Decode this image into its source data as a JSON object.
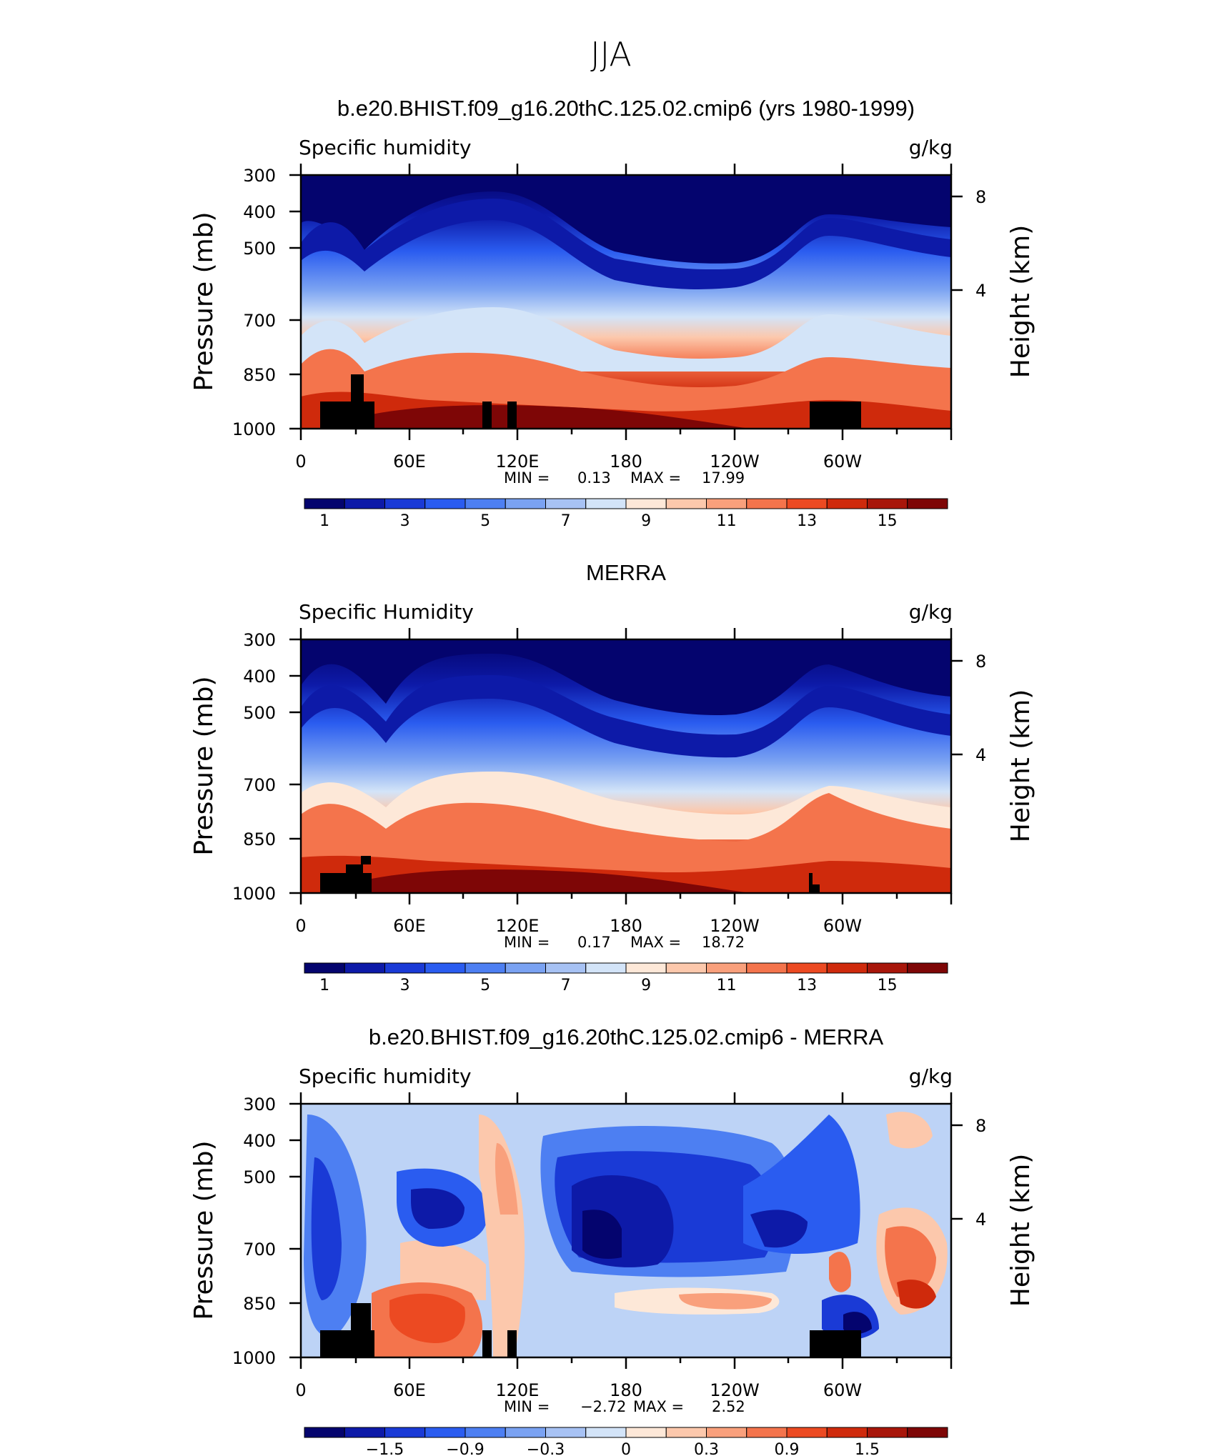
{
  "figure": {
    "title": "JJA",
    "y_left_label": "Pressure (mb)",
    "y_right_label": "Height (km)",
    "x_ticks": [
      "0",
      "60E",
      "120E",
      "180",
      "120W",
      "60W"
    ],
    "p_ticks": [
      "300",
      "400",
      "500",
      "700",
      "850",
      "1000"
    ],
    "h_ticks": [
      "8",
      "4"
    ]
  },
  "chart_data": [
    {
      "type": "heatmap",
      "title": "b.e20.BHIST.f09_g16.20thC.125.02.cmip6 (yrs 1980-1999)",
      "left_label": "Specific humidity",
      "units": "g/kg",
      "xlabel": "",
      "x_range": [
        0,
        360
      ],
      "ylim": [
        1000,
        300
      ],
      "ylabel": "Pressure (mb)",
      "min_label": "MIN =",
      "min_value": "0.13",
      "max_label": "MAX =",
      "max_value": "17.99",
      "colorbar_labels": [
        "1",
        "3",
        "5",
        "7",
        "9",
        "11",
        "13",
        "15"
      ],
      "colors": [
        "#04046e",
        "#0d1aa8",
        "#1a3ad6",
        "#2a5cf0",
        "#4d7ff2",
        "#7aa2f2",
        "#a7c2f4",
        "#d3e4f8",
        "#fde8d8",
        "#fcc8ac",
        "#f9a07c",
        "#f4744c",
        "#ec4a22",
        "#cf2a0c",
        "#a8160a",
        "#7e0606"
      ]
    },
    {
      "type": "heatmap",
      "title": "MERRA",
      "left_label": "Specific Humidity",
      "units": "g/kg",
      "xlabel": "",
      "x_range": [
        0,
        360
      ],
      "ylim": [
        1000,
        300
      ],
      "ylabel": "Pressure (mb)",
      "min_label": "MIN =",
      "min_value": "0.17",
      "max_label": "MAX =",
      "max_value": "18.72",
      "colorbar_labels": [
        "1",
        "3",
        "5",
        "7",
        "9",
        "11",
        "13",
        "15"
      ],
      "colors": [
        "#04046e",
        "#0d1aa8",
        "#1a3ad6",
        "#2a5cf0",
        "#4d7ff2",
        "#7aa2f2",
        "#a7c2f4",
        "#d3e4f8",
        "#fde8d8",
        "#fcc8ac",
        "#f9a07c",
        "#f4744c",
        "#ec4a22",
        "#cf2a0c",
        "#a8160a",
        "#7e0606"
      ]
    },
    {
      "type": "heatmap",
      "title": "b.e20.BHIST.f09_g16.20thC.125.02.cmip6 - MERRA",
      "left_label": "Specific humidity",
      "units": "g/kg",
      "xlabel": "",
      "x_range": [
        0,
        360
      ],
      "ylim": [
        1000,
        300
      ],
      "ylabel": "Pressure (mb)",
      "min_label": "MIN =",
      "min_value": "−2.72",
      "max_label": "MAX =",
      "max_value": "2.52",
      "colorbar_labels": [
        "−1.5",
        "−0.9",
        "−0.3",
        "0",
        "0.3",
        "0.9",
        "1.5"
      ],
      "colors": [
        "#04046e",
        "#0d1aa8",
        "#1a3ad6",
        "#2a5cf0",
        "#4d7ff2",
        "#7aa2f2",
        "#a7c2f4",
        "#d3e4f8",
        "#fde8d8",
        "#fcc8ac",
        "#f9a07c",
        "#f4744c",
        "#ec4a22",
        "#cf2a0c",
        "#a8160a",
        "#7e0606"
      ]
    }
  ]
}
